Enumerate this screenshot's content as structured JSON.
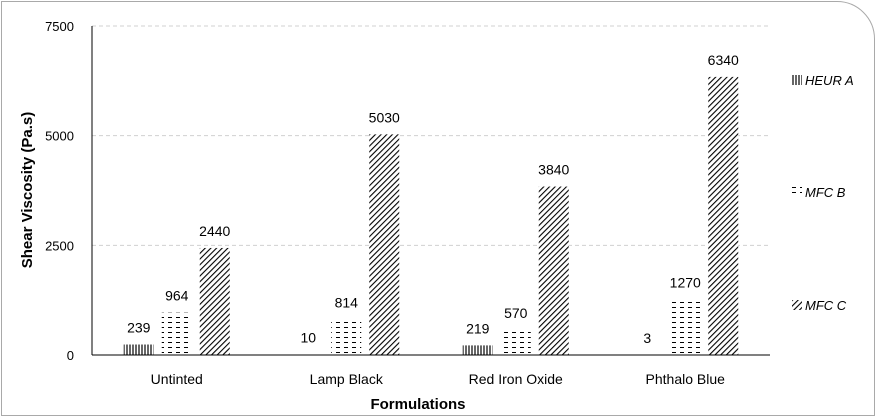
{
  "chart_data": {
    "type": "bar",
    "xlabel": "Formulations",
    "ylabel": "Shear Viscosity (Pa.s)",
    "categories": [
      "Untinted",
      "Lamp Black",
      "Red Iron Oxide",
      "Phthalo Blue"
    ],
    "series": [
      {
        "name": "HEUR A",
        "values": [
          239,
          10,
          219,
          3
        ],
        "pattern": "vertical-lines"
      },
      {
        "name": "MFC B",
        "values": [
          964,
          814,
          570,
          1270
        ],
        "pattern": "dashed-horizontal"
      },
      {
        "name": "MFC C",
        "values": [
          2440,
          5030,
          3840,
          6340
        ],
        "pattern": "diagonal-lines"
      }
    ],
    "ylim": [
      0,
      7500
    ],
    "yticks": [
      0,
      2500,
      5000,
      7500
    ],
    "ytick_labels": [
      "0",
      "2500",
      "5000",
      "7500"
    ],
    "grid": true,
    "legend_position": "right",
    "colors": {
      "bar_stroke": "#000000",
      "grid": "#d0d0d0",
      "axis": "#000000",
      "frame": "#a9a9a9"
    }
  }
}
